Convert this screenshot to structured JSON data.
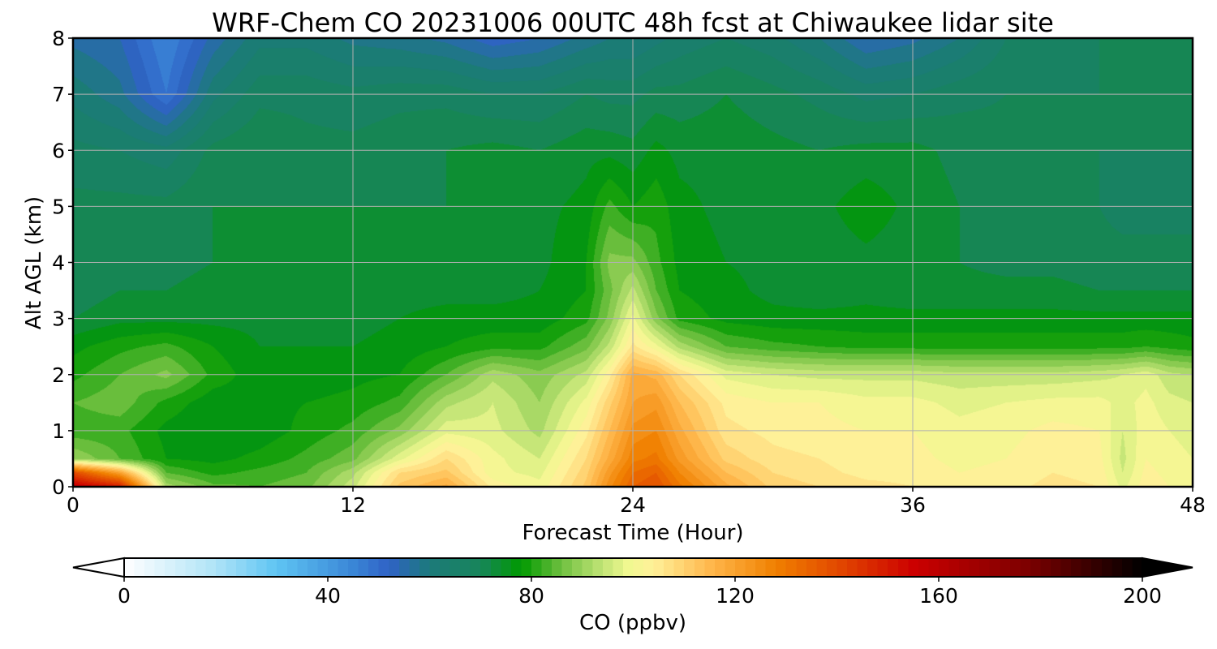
{
  "chart_data": {
    "type": "heatmap",
    "title": "WRF-Chem CO  20231006 00UTC 48h fcst at Chiwaukee lidar site",
    "xlabel": "Forecast Time (Hour)",
    "ylabel": "Alt AGL (km)",
    "xlim": [
      0,
      48
    ],
    "ylim": [
      0,
      8
    ],
    "xticks": [
      "0",
      "12",
      "24",
      "36",
      "48"
    ],
    "yticks": [
      "0",
      "1",
      "2",
      "3",
      "4",
      "5",
      "6",
      "7",
      "8"
    ],
    "grid": true,
    "x": [
      0,
      2,
      4,
      6,
      8,
      10,
      12,
      14,
      16,
      18,
      20,
      22,
      23,
      24,
      25,
      26,
      28,
      30,
      32,
      34,
      36,
      38,
      40,
      42,
      44,
      45,
      46,
      47,
      48
    ],
    "y": [
      0,
      0.25,
      0.5,
      1,
      1.5,
      2,
      2.5,
      3,
      3.5,
      4,
      5,
      6,
      7,
      8
    ],
    "z": [
      [
        158,
        150,
        92,
        85,
        84,
        86,
        95,
        112,
        118,
        104,
        100,
        112,
        125,
        135,
        138,
        130,
        118,
        110,
        108,
        106,
        105,
        103,
        104,
        106,
        105,
        98,
        104,
        102,
        100
      ],
      [
        140,
        120,
        84,
        80,
        82,
        84,
        92,
        108,
        112,
        100,
        98,
        110,
        122,
        132,
        135,
        126,
        114,
        108,
        106,
        104,
        104,
        102,
        103,
        105,
        104,
        96,
        103,
        101,
        100
      ],
      [
        90,
        84,
        78,
        77,
        79,
        82,
        86,
        98,
        108,
        100,
        96,
        108,
        118,
        128,
        130,
        122,
        110,
        106,
        105,
        103,
        103,
        101,
        102,
        104,
        103,
        95,
        102,
        100,
        99
      ],
      [
        82,
        82,
        77,
        75,
        76,
        79,
        82,
        88,
        98,
        97,
        92,
        104,
        114,
        124,
        126,
        118,
        106,
        104,
        103,
        102,
        102,
        100,
        101,
        103,
        102,
        96,
        101,
        99,
        98
      ],
      [
        84,
        86,
        80,
        76,
        77,
        78,
        79,
        82,
        92,
        96,
        90,
        100,
        110,
        120,
        122,
        114,
        104,
        102,
        102,
        100,
        100,
        98,
        99,
        100,
        100,
        98,
        100,
        97,
        96
      ],
      [
        80,
        84,
        88,
        80,
        76,
        76,
        77,
        78,
        84,
        92,
        88,
        94,
        104,
        118,
        116,
        108,
        98,
        96,
        95,
        95,
        95,
        94,
        94,
        94,
        95,
        96,
        98,
        94,
        93
      ],
      [
        77,
        80,
        82,
        78,
        75,
        75,
        75,
        76,
        78,
        80,
        80,
        86,
        94,
        106,
        100,
        92,
        84,
        82,
        81,
        80,
        80,
        80,
        80,
        80,
        80,
        80,
        81,
        80,
        79
      ],
      [
        72,
        74,
        74,
        74,
        74,
        74,
        74,
        75,
        76,
        76,
        76,
        80,
        88,
        100,
        88,
        80,
        77,
        76,
        76,
        76,
        76,
        76,
        76,
        76,
        76,
        76,
        76,
        76,
        76
      ],
      [
        70,
        72,
        72,
        73,
        73,
        74,
        73,
        74,
        74,
        74,
        75,
        78,
        86,
        94,
        84,
        78,
        76,
        74,
        73,
        74,
        73,
        73,
        73,
        73,
        72,
        72,
        72,
        72,
        72
      ],
      [
        70,
        71,
        71,
        72,
        73,
        73,
        72,
        73,
        73,
        73,
        74,
        78,
        88,
        88,
        82,
        77,
        75,
        74,
        73,
        74,
        73,
        72,
        71,
        71,
        70,
        70,
        70,
        70,
        70
      ],
      [
        70,
        70,
        70,
        72,
        72,
        72,
        72,
        72,
        72,
        72,
        74,
        76,
        82,
        78,
        80,
        76,
        74,
        73,
        74,
        77,
        74,
        72,
        71,
        70,
        69,
        68,
        68,
        68,
        68
      ],
      [
        67,
        66,
        64,
        70,
        72,
        70,
        70,
        71,
        72,
        73,
        72,
        74,
        74,
        73,
        76,
        74,
        74,
        73,
        72,
        73,
        73,
        71,
        70,
        70,
        69,
        69,
        69,
        69,
        69
      ],
      [
        62,
        58,
        48,
        62,
        68,
        68,
        67,
        68,
        68,
        66,
        66,
        69,
        68,
        68,
        70,
        70,
        72,
        70,
        68,
        65,
        66,
        68,
        69,
        69,
        69,
        69,
        69,
        69,
        69
      ],
      [
        56,
        54,
        45,
        55,
        62,
        62,
        59,
        58,
        56,
        52,
        54,
        58,
        60,
        60,
        62,
        64,
        66,
        64,
        60,
        54,
        56,
        60,
        66,
        68,
        69,
        69,
        69,
        69,
        69
      ]
    ],
    "colorbar": {
      "label": "CO  (ppbv)",
      "min": 0,
      "max": 200,
      "ticks": [
        "0",
        "40",
        "80",
        "120",
        "160",
        "200"
      ],
      "extend": "both",
      "colors": [
        {
          "v": 0,
          "c": "#ffffff"
        },
        {
          "v": 18,
          "c": "#aee3f7"
        },
        {
          "v": 30,
          "c": "#5ec4f3"
        },
        {
          "v": 45,
          "c": "#3a86d6"
        },
        {
          "v": 52,
          "c": "#2f62c6"
        },
        {
          "v": 60,
          "c": "#1c7a7a"
        },
        {
          "v": 70,
          "c": "#17855a"
        },
        {
          "v": 78,
          "c": "#009900"
        },
        {
          "v": 86,
          "c": "#70c040"
        },
        {
          "v": 93,
          "c": "#b8e070"
        },
        {
          "v": 99,
          "c": "#f0f890"
        },
        {
          "v": 104,
          "c": "#fff099"
        },
        {
          "v": 115,
          "c": "#ffb84d"
        },
        {
          "v": 128,
          "c": "#f08000"
        },
        {
          "v": 142,
          "c": "#e04000"
        },
        {
          "v": 155,
          "c": "#cc0000"
        },
        {
          "v": 178,
          "c": "#7a0000"
        },
        {
          "v": 200,
          "c": "#000000"
        }
      ]
    }
  }
}
